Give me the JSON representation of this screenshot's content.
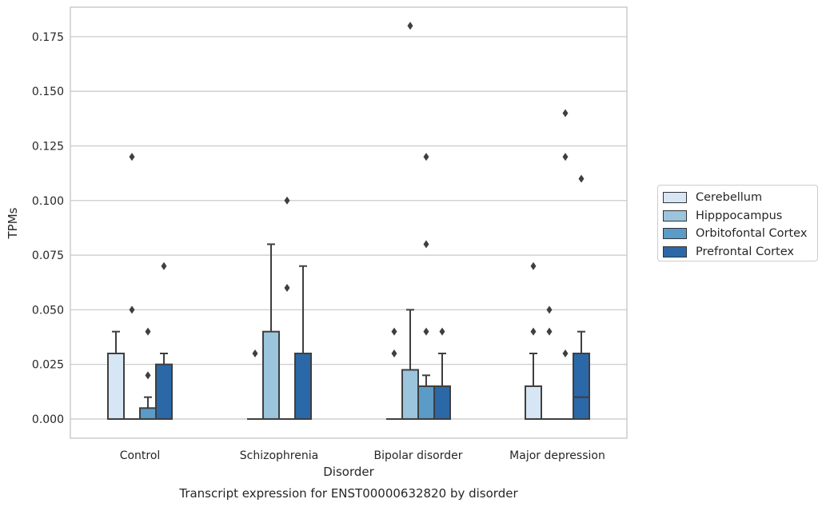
{
  "chart_data": {
    "type": "box",
    "title": "Transcript expression for ENST00000632820 by disorder",
    "xlabel": "Disorder",
    "ylabel": "TPMs",
    "ylim": [
      -0.0088,
      0.1885
    ],
    "yticks": [
      "0.000",
      "0.025",
      "0.050",
      "0.075",
      "0.100",
      "0.125",
      "0.150",
      "0.175"
    ],
    "categories": [
      "Control",
      "Schizophrenia",
      "Bipolar disorder",
      "Major depression"
    ],
    "grid": "horizontal",
    "legend_position": "right",
    "series": [
      {
        "name": "Cerebellum",
        "color": "#d6e6f4",
        "boxes": [
          {
            "q1": 0,
            "median": 0,
            "q3": 0.03,
            "whisker_low": 0,
            "whisker_high": 0.04,
            "outliers": []
          },
          {
            "q1": 0,
            "median": 0,
            "q3": 0,
            "whisker_low": 0,
            "whisker_high": 0,
            "outliers": [
              0.03
            ]
          },
          {
            "q1": 0,
            "median": 0,
            "q3": 0,
            "whisker_low": 0,
            "whisker_high": 0,
            "outliers": [
              0.03,
              0.04
            ]
          },
          {
            "q1": 0,
            "median": 0,
            "q3": 0.015,
            "whisker_low": 0,
            "whisker_high": 0.03,
            "outliers": [
              0.04,
              0.07
            ]
          }
        ]
      },
      {
        "name": "Hipppocampus",
        "color": "#9bc4dd",
        "boxes": [
          {
            "q1": 0,
            "median": 0,
            "q3": 0,
            "whisker_low": 0,
            "whisker_high": 0,
            "outliers": [
              0.05,
              0.12
            ]
          },
          {
            "q1": 0,
            "median": 0,
            "q3": 0.04,
            "whisker_low": 0,
            "whisker_high": 0.08,
            "outliers": []
          },
          {
            "q1": 0,
            "median": 0,
            "q3": 0.0225,
            "whisker_low": 0,
            "whisker_high": 0.05,
            "outliers": [
              0.18
            ]
          },
          {
            "q1": 0,
            "median": 0,
            "q3": 0,
            "whisker_low": 0,
            "whisker_high": 0,
            "outliers": [
              0.04,
              0.05
            ]
          }
        ]
      },
      {
        "name": "Orbitofontal Cortex",
        "color": "#5b9bc7",
        "boxes": [
          {
            "q1": 0,
            "median": 0,
            "q3": 0.005,
            "whisker_low": 0,
            "whisker_high": 0.01,
            "outliers": [
              0.02,
              0.04
            ]
          },
          {
            "q1": 0,
            "median": 0,
            "q3": 0,
            "whisker_low": 0,
            "whisker_high": 0,
            "outliers": [
              0.06,
              0.1
            ]
          },
          {
            "q1": 0,
            "median": 0,
            "q3": 0.015,
            "whisker_low": 0,
            "whisker_high": 0.02,
            "outliers": [
              0.04,
              0.08,
              0.12
            ]
          },
          {
            "q1": 0,
            "median": 0,
            "q3": 0,
            "whisker_low": 0,
            "whisker_high": 0,
            "outliers": [
              0.03,
              0.12,
              0.14
            ]
          }
        ]
      },
      {
        "name": "Prefrontal Cortex",
        "color": "#2b68a8",
        "boxes": [
          {
            "q1": 0,
            "median": 0,
            "q3": 0.025,
            "whisker_low": 0,
            "whisker_high": 0.03,
            "outliers": [
              0.07
            ]
          },
          {
            "q1": 0,
            "median": 0,
            "q3": 0.03,
            "whisker_low": 0,
            "whisker_high": 0.07,
            "outliers": []
          },
          {
            "q1": 0,
            "median": 0,
            "q3": 0.015,
            "whisker_low": 0,
            "whisker_high": 0.03,
            "outliers": [
              0.04
            ]
          },
          {
            "q1": 0,
            "median": 0.01,
            "q3": 0.03,
            "whisker_low": 0,
            "whisker_high": 0.04,
            "outliers": [
              0.11
            ]
          }
        ]
      }
    ]
  }
}
